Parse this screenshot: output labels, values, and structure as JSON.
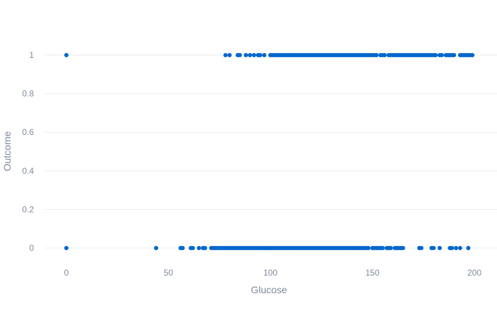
{
  "chart_data": {
    "type": "scatter",
    "title": "",
    "xlabel": "Glucose",
    "ylabel": "Outcome",
    "xlim": [
      -10,
      205
    ],
    "ylim": [
      -0.07,
      1.08
    ],
    "xticks": [
      0,
      50,
      100,
      150,
      200
    ],
    "yticks": [
      0,
      0.2,
      0.4,
      0.6,
      0.8,
      1
    ],
    "ytick_labels": [
      "0",
      "0.2",
      "0.4",
      "0.6",
      "0.8",
      "1"
    ],
    "grid": true,
    "legend": "none",
    "marker_color": "#0066cc",
    "series": [
      {
        "values_outcome_1": [
          0,
          78,
          80,
          84,
          85,
          88,
          90,
          92,
          94,
          95,
          97,
          100,
          101,
          102,
          103,
          104,
          105,
          106,
          107,
          108,
          109,
          110,
          111,
          112,
          113,
          114,
          115,
          116,
          117,
          118,
          119,
          120,
          121,
          122,
          123,
          124,
          125,
          126,
          127,
          128,
          129,
          130,
          131,
          132,
          133,
          134,
          135,
          136,
          137,
          138,
          139,
          140,
          141,
          142,
          143,
          144,
          145,
          146,
          147,
          148,
          149,
          150,
          151,
          152,
          154,
          155,
          156,
          158,
          159,
          160,
          161,
          162,
          163,
          164,
          165,
          166,
          167,
          168,
          169,
          170,
          171,
          172,
          173,
          174,
          175,
          176,
          177,
          178,
          179,
          180,
          181,
          183,
          184,
          186,
          187,
          188,
          189,
          190,
          193,
          194,
          195,
          196,
          197,
          198,
          199
        ],
        "values_outcome_0": [
          0,
          44,
          56,
          57,
          61,
          62,
          65,
          67,
          68,
          71,
          72,
          73,
          74,
          75,
          76,
          77,
          78,
          79,
          80,
          81,
          82,
          83,
          84,
          85,
          86,
          87,
          88,
          89,
          90,
          91,
          92,
          93,
          94,
          95,
          96,
          97,
          98,
          99,
          100,
          101,
          102,
          103,
          104,
          105,
          106,
          107,
          108,
          109,
          110,
          111,
          112,
          113,
          114,
          115,
          116,
          117,
          118,
          119,
          120,
          121,
          122,
          123,
          124,
          125,
          126,
          127,
          128,
          129,
          130,
          131,
          132,
          133,
          134,
          135,
          136,
          137,
          138,
          139,
          140,
          141,
          142,
          143,
          144,
          145,
          146,
          147,
          148,
          150,
          151,
          152,
          153,
          154,
          155,
          157,
          158,
          159,
          161,
          162,
          163,
          164,
          165,
          173,
          174,
          179,
          180,
          183,
          188,
          189,
          191,
          193,
          197
        ]
      }
    ]
  }
}
